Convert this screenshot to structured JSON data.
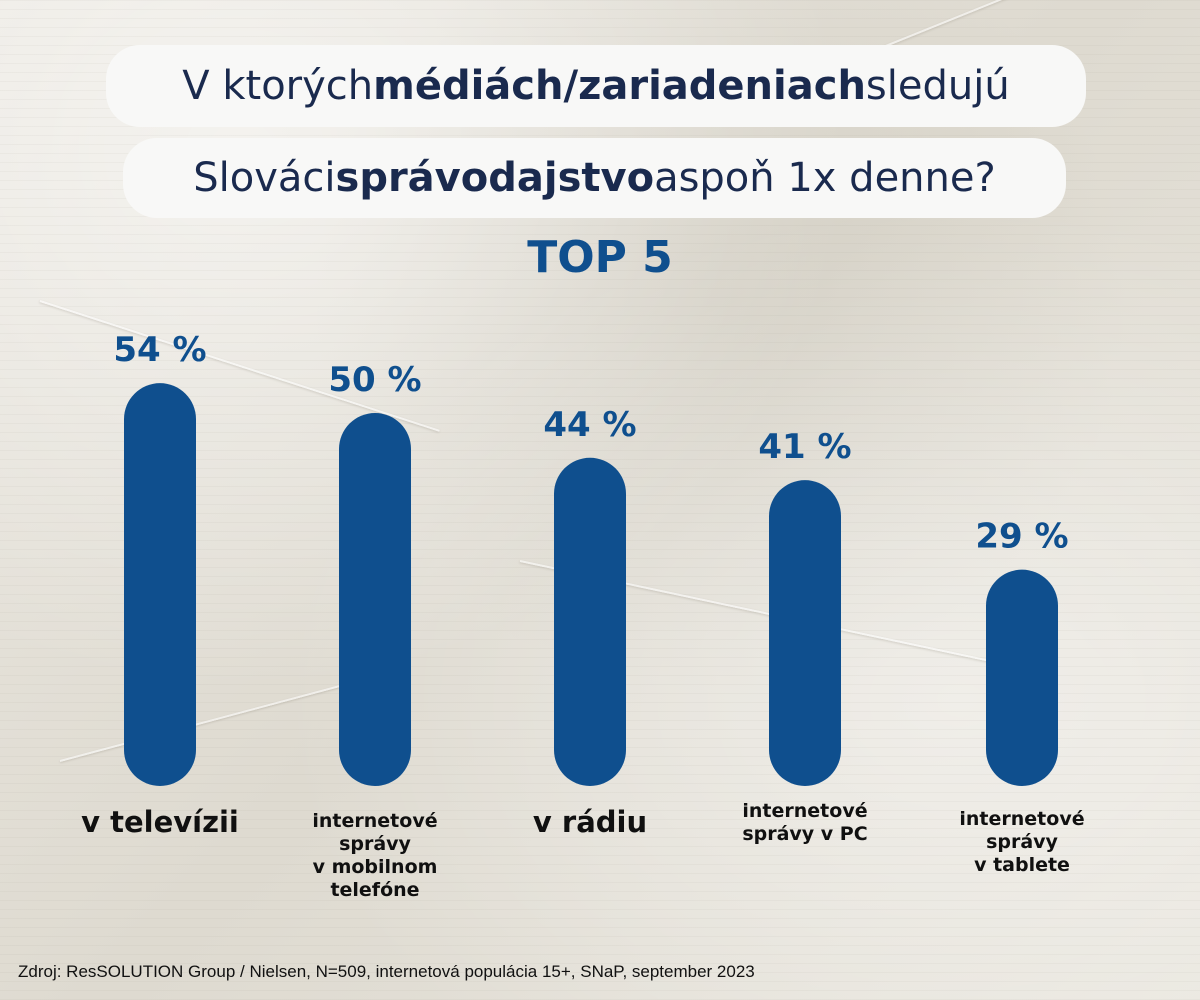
{
  "title": {
    "line1": [
      {
        "text": "V ktorých ",
        "bold": false
      },
      {
        "text": "médiách/zariadeniach",
        "bold": true
      },
      {
        "text": " sledujú",
        "bold": false
      }
    ],
    "line2": [
      {
        "text": "Slováci ",
        "bold": false
      },
      {
        "text": "správodajstvo",
        "bold": true
      },
      {
        "text": " aspoň 1x denne?",
        "bold": false
      }
    ]
  },
  "subtitle": "TOP 5",
  "chart_data": {
    "type": "bar",
    "categories": [
      "v televízii",
      "internetové správy v mobilnom telefóne",
      "v rádiu",
      "internetové správy v PC",
      "internetové správy v tablete"
    ],
    "category_lines": [
      [
        "v televízii"
      ],
      [
        "internetové",
        "správy",
        "v mobilnom",
        "telefóne"
      ],
      [
        "v rádiu"
      ],
      [
        "internetové",
        "správy v PC"
      ],
      [
        "internetové",
        "správy",
        "v tablete"
      ]
    ],
    "values": [
      54,
      50,
      44,
      41,
      29
    ],
    "value_labels": [
      "54 %",
      "50 %",
      "44 %",
      "41 %",
      "29 %"
    ],
    "unit": "%",
    "bar_color": "#0f4f8e",
    "label_color": "#0f4f8e",
    "grid": false
  },
  "source": "Zdroj: ResSOLUTION Group / Nielsen, N=509, internetová populácia 15+, SNaP, september 2023",
  "colors": {
    "accent": "#0f4f8e",
    "title_text": "#1a2a4e",
    "pill_bg": "#f8f8f7"
  }
}
